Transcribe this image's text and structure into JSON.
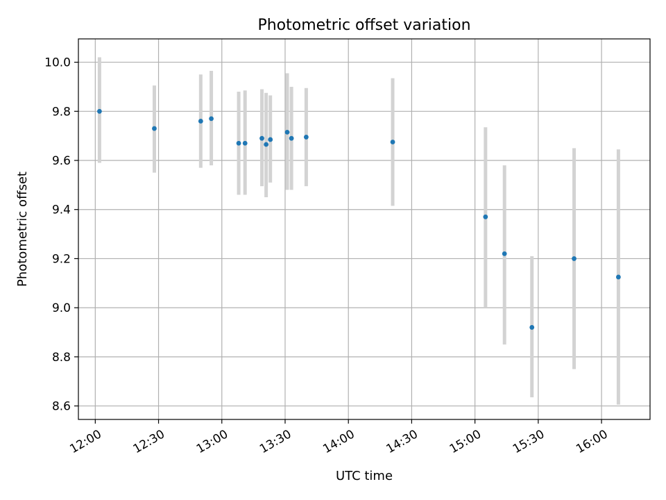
{
  "chart_data": {
    "type": "scatter",
    "title": "Photometric offset variation",
    "xlabel": "UTC time",
    "ylabel": "Photometric offset",
    "x_axis_type": "time",
    "xlim": [
      "11:52",
      "16:23"
    ],
    "ylim": [
      8.545,
      10.095
    ],
    "x_ticks": [
      "12:00",
      "12:30",
      "13:00",
      "13:30",
      "14:00",
      "14:30",
      "15:00",
      "15:30",
      "16:00"
    ],
    "y_ticks": [
      8.6,
      8.8,
      9.0,
      9.2,
      9.4,
      9.6,
      9.8,
      10.0
    ],
    "y_tick_labels": [
      "8.6",
      "8.8",
      "9.0",
      "9.2",
      "9.4",
      "9.6",
      "9.8",
      "10.0"
    ],
    "grid": true,
    "legend": "none",
    "colors": {
      "point": "#1f77b4",
      "errorbar": "#d3d3d3",
      "grid": "#b0b0b0"
    },
    "series": [
      {
        "points": [
          {
            "x": "12:02",
            "y": 9.8,
            "ylow": 9.59,
            "yhigh": 10.02
          },
          {
            "x": "12:28",
            "y": 9.73,
            "ylow": 9.55,
            "yhigh": 9.905
          },
          {
            "x": "12:50",
            "y": 9.76,
            "ylow": 9.57,
            "yhigh": 9.95
          },
          {
            "x": "12:55",
            "y": 9.77,
            "ylow": 9.58,
            "yhigh": 9.965
          },
          {
            "x": "13:08",
            "y": 9.67,
            "ylow": 9.46,
            "yhigh": 9.88
          },
          {
            "x": "13:11",
            "y": 9.67,
            "ylow": 9.46,
            "yhigh": 9.885
          },
          {
            "x": "13:19",
            "y": 9.69,
            "ylow": 9.495,
            "yhigh": 9.89
          },
          {
            "x": "13:21",
            "y": 9.665,
            "ylow": 9.45,
            "yhigh": 9.875
          },
          {
            "x": "13:23",
            "y": 9.685,
            "ylow": 9.51,
            "yhigh": 9.865
          },
          {
            "x": "13:31",
            "y": 9.715,
            "ylow": 9.48,
            "yhigh": 9.955
          },
          {
            "x": "13:33",
            "y": 9.69,
            "ylow": 9.48,
            "yhigh": 9.9
          },
          {
            "x": "13:40",
            "y": 9.695,
            "ylow": 9.495,
            "yhigh": 9.895
          },
          {
            "x": "14:21",
            "y": 9.675,
            "ylow": 9.415,
            "yhigh": 9.935
          },
          {
            "x": "15:05",
            "y": 9.37,
            "ylow": 9.0,
            "yhigh": 9.735
          },
          {
            "x": "15:14",
            "y": 9.22,
            "ylow": 8.85,
            "yhigh": 9.58
          },
          {
            "x": "15:27",
            "y": 8.92,
            "ylow": 8.635,
            "yhigh": 9.21
          },
          {
            "x": "15:47",
            "y": 9.2,
            "ylow": 8.75,
            "yhigh": 9.65
          },
          {
            "x": "16:08",
            "y": 9.125,
            "ylow": 8.605,
            "yhigh": 9.645
          }
        ]
      }
    ]
  }
}
